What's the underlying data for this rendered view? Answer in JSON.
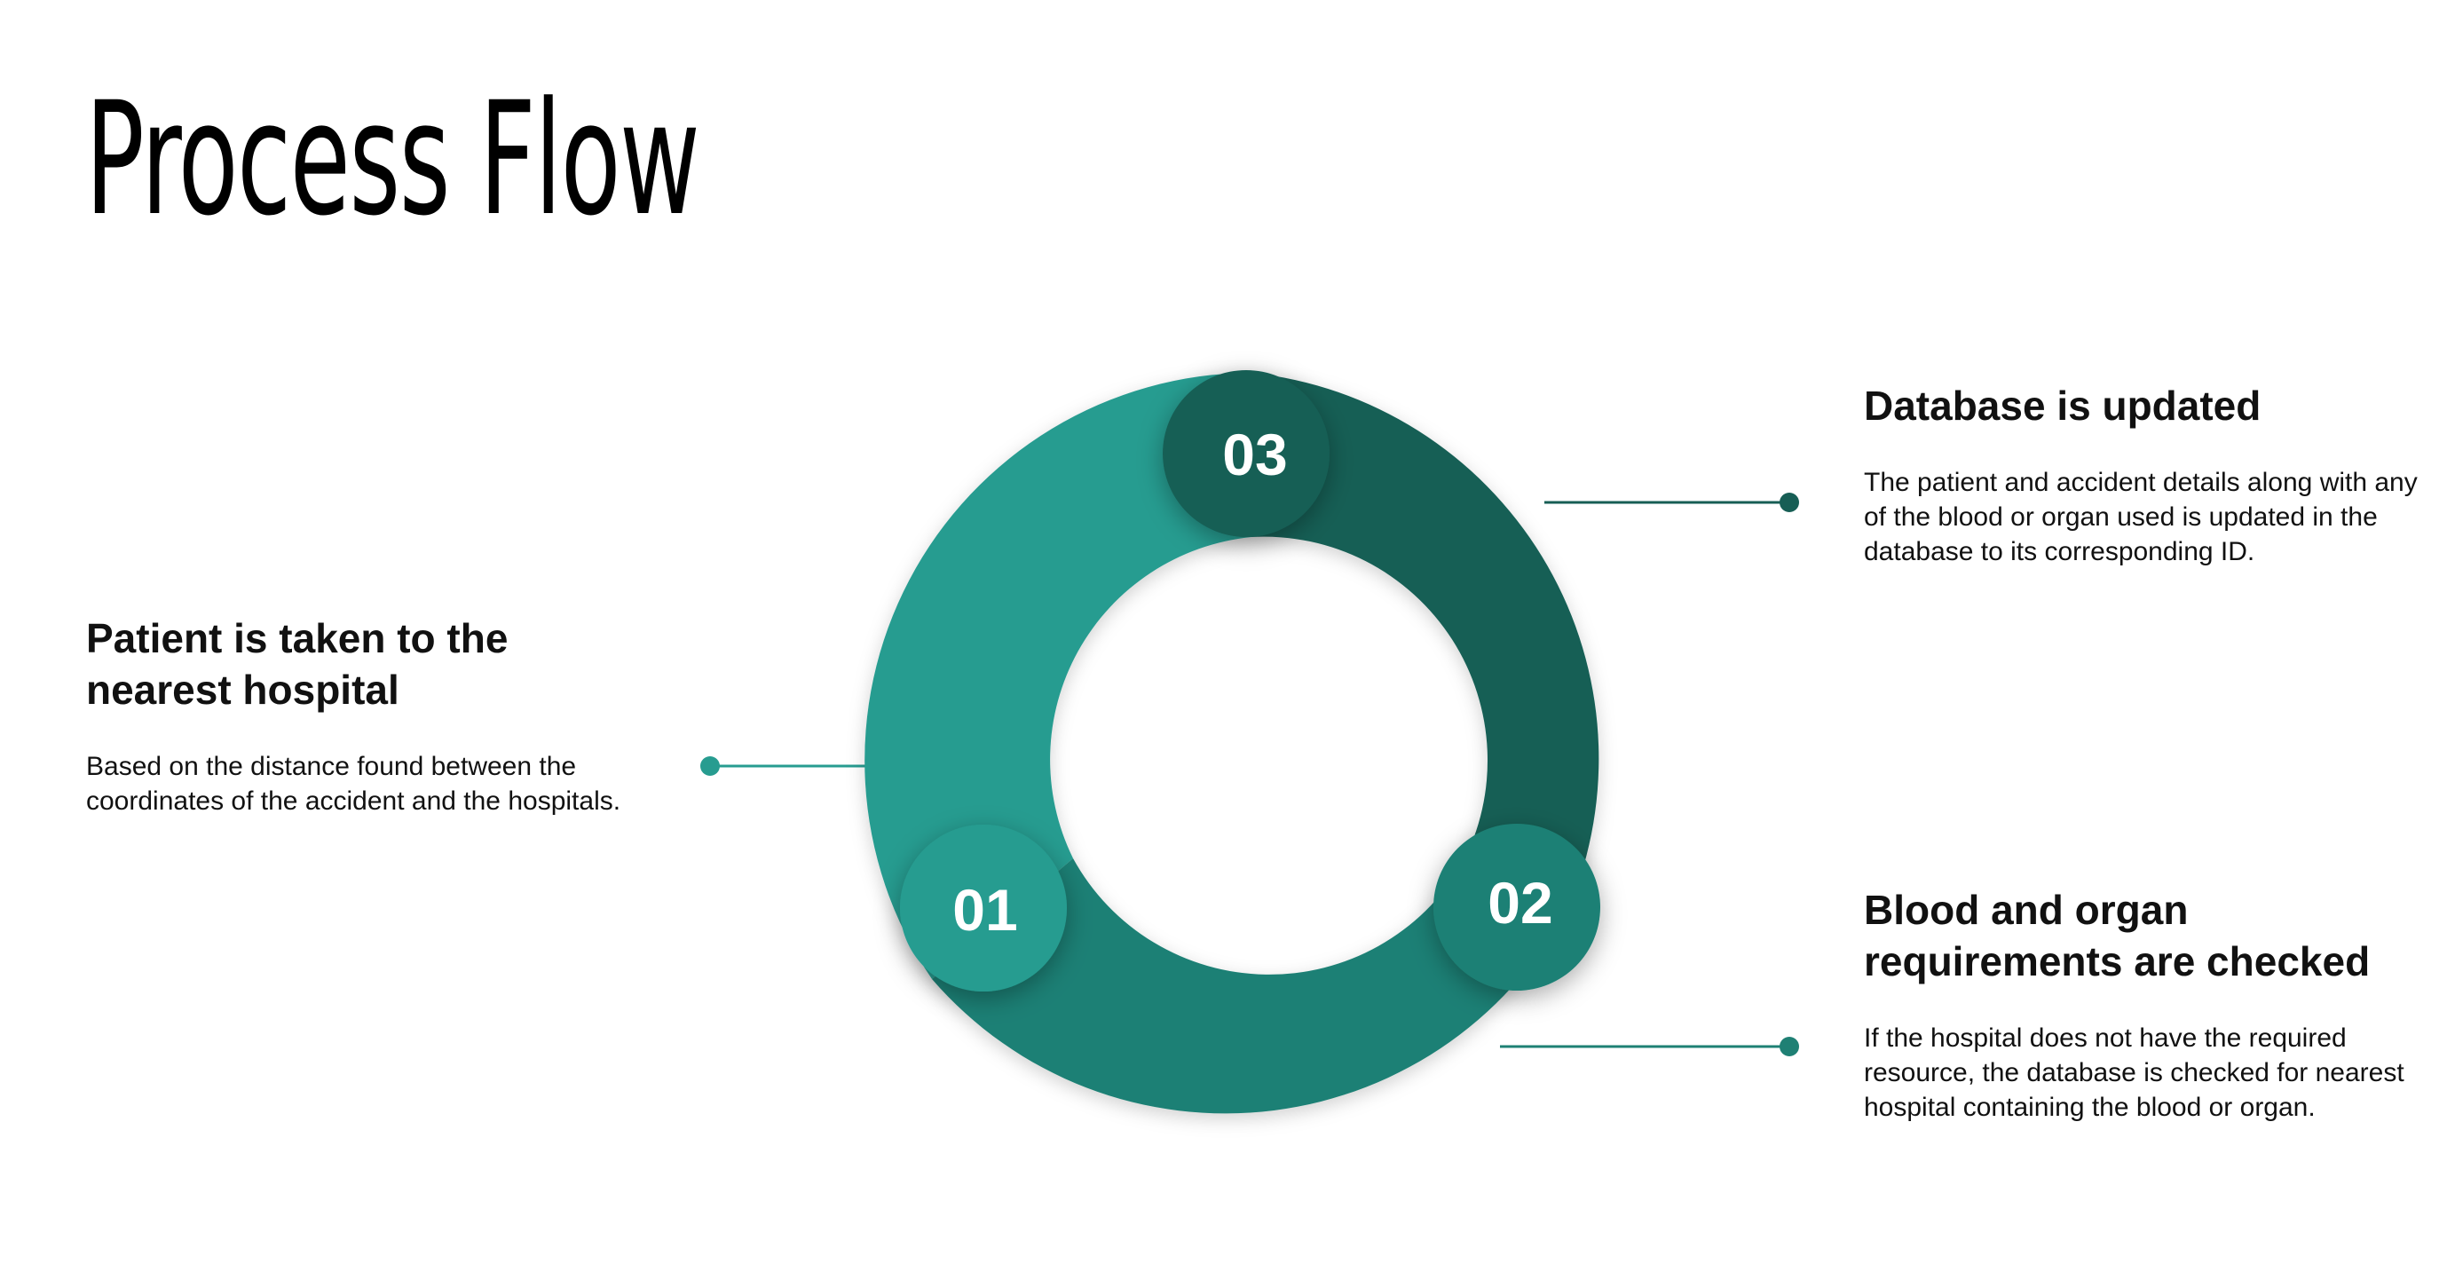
{
  "title": "Process Flow",
  "colors": {
    "step1": "#279C90",
    "step2": "#1F8074",
    "step3": "#175E55",
    "background": "#FFFFFF",
    "text": "#111111"
  },
  "steps": [
    {
      "number": "01",
      "heading": "Patient is taken to the nearest hospital",
      "body": "Based on the distance found between the coordinates of the accident and the hospitals."
    },
    {
      "number": "02",
      "heading": "Blood and organ requirements are checked",
      "body": "If the hospital does not have the required resource, the database is checked for nearest hospital containing the blood or organ."
    },
    {
      "number": "03",
      "heading": "Database is updated",
      "body": "The patient and accident details along with any of the blood or organ used is updated in the database to its corresponding ID."
    }
  ]
}
